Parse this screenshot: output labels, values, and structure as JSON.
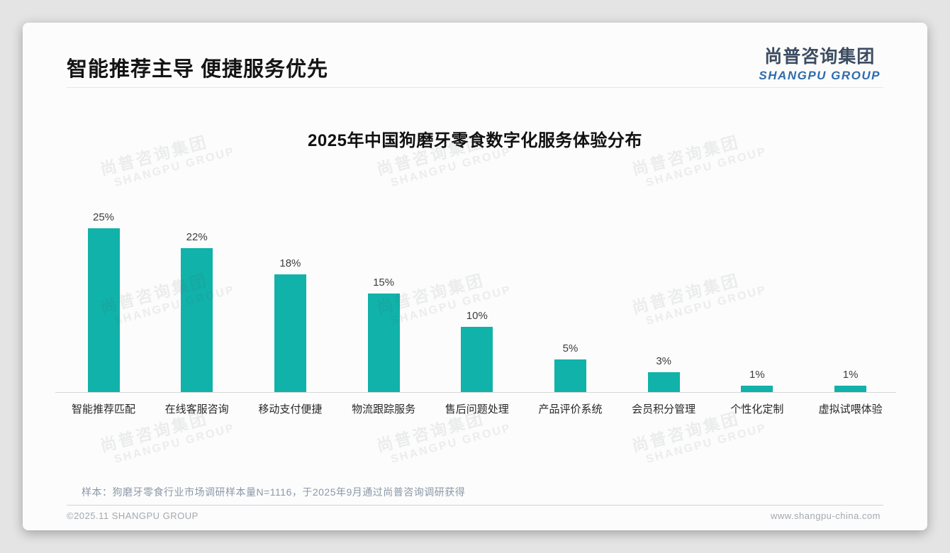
{
  "page": {
    "title": "智能推荐主导 便捷服务优先",
    "logo": {
      "cn": "尚普咨询集团",
      "en": "SHANGPU GROUP"
    },
    "watermark": {
      "cn": "尚普咨询集团",
      "en": "SHANGPU GROUP"
    },
    "note": "样本：狗磨牙零食行业市场调研样本量N=1116，于2025年9月通过尚普咨询调研获得",
    "footer": {
      "left": "©2025.11 SHANGPU GROUP",
      "right": "www.shangpu-china.com"
    }
  },
  "chart_data": {
    "type": "bar",
    "title": "2025年中国狗磨牙零食数字化服务体验分布",
    "categories": [
      "智能推荐匹配",
      "在线客服咨询",
      "移动支付便捷",
      "物流跟踪服务",
      "售后问题处理",
      "产品评价系统",
      "会员积分管理",
      "个性化定制",
      "虚拟试喂体验"
    ],
    "values": [
      25,
      22,
      18,
      15,
      10,
      5,
      3,
      1,
      1
    ],
    "value_labels": [
      "25%",
      "22%",
      "18%",
      "15%",
      "10%",
      "5%",
      "3%",
      "1%",
      "1%"
    ],
    "unit": "%",
    "bar_color": "#10b2a9",
    "xlabel": "",
    "ylabel": "",
    "ylim": [
      0,
      28
    ],
    "grid": false,
    "legend": null,
    "value_labels_shown": true
  }
}
